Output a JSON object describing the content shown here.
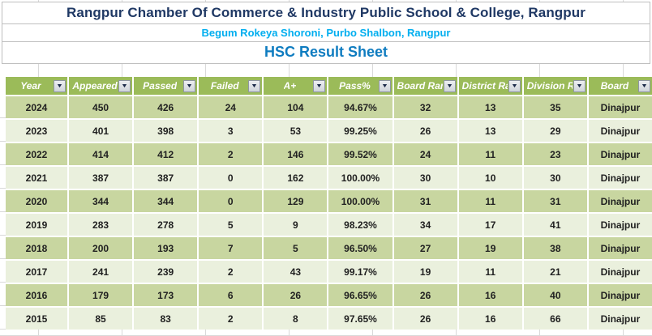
{
  "titles": {
    "school": "Rangpur Chamber Of Commerce & Industry Public School & College, Rangpur",
    "address": "Begum Rokeya Shoroni, Purbo Shalbon, Rangpur",
    "sheet": "HSC Result Sheet"
  },
  "colors": {
    "title_navy": "#1f3864",
    "address_cyan": "#00aeef",
    "sheet_blue": "#0f7cc0",
    "header_green": "#9bbb59",
    "band_dark": "#c8d6a0",
    "band_light": "#eaf0dd",
    "gridline_gray": "#d9d9d9"
  },
  "table": {
    "filter_icon": "▼",
    "columns": [
      "Year",
      "Appeared",
      "Passed",
      "Failed",
      "A+",
      "Pass%",
      "Board Rank",
      "District Rank",
      "Division Rank",
      "Board"
    ],
    "rows": [
      [
        "2024",
        "450",
        "426",
        "24",
        "104",
        "94.67%",
        "32",
        "13",
        "35",
        "Dinajpur"
      ],
      [
        "2023",
        "401",
        "398",
        "3",
        "53",
        "99.25%",
        "26",
        "13",
        "29",
        "Dinajpur"
      ],
      [
        "2022",
        "414",
        "412",
        "2",
        "146",
        "99.52%",
        "24",
        "11",
        "23",
        "Dinajpur"
      ],
      [
        "2021",
        "387",
        "387",
        "0",
        "162",
        "100.00%",
        "30",
        "10",
        "30",
        "Dinajpur"
      ],
      [
        "2020",
        "344",
        "344",
        "0",
        "129",
        "100.00%",
        "31",
        "11",
        "31",
        "Dinajpur"
      ],
      [
        "2019",
        "283",
        "278",
        "5",
        "9",
        "98.23%",
        "34",
        "17",
        "41",
        "Dinajpur"
      ],
      [
        "2018",
        "200",
        "193",
        "7",
        "5",
        "96.50%",
        "27",
        "19",
        "38",
        "Dinajpur"
      ],
      [
        "2017",
        "241",
        "239",
        "2",
        "43",
        "99.17%",
        "19",
        "11",
        "21",
        "Dinajpur"
      ],
      [
        "2016",
        "179",
        "173",
        "6",
        "26",
        "96.65%",
        "26",
        "16",
        "40",
        "Dinajpur"
      ],
      [
        "2015",
        "85",
        "83",
        "2",
        "8",
        "97.65%",
        "26",
        "16",
        "66",
        "Dinajpur"
      ]
    ]
  }
}
